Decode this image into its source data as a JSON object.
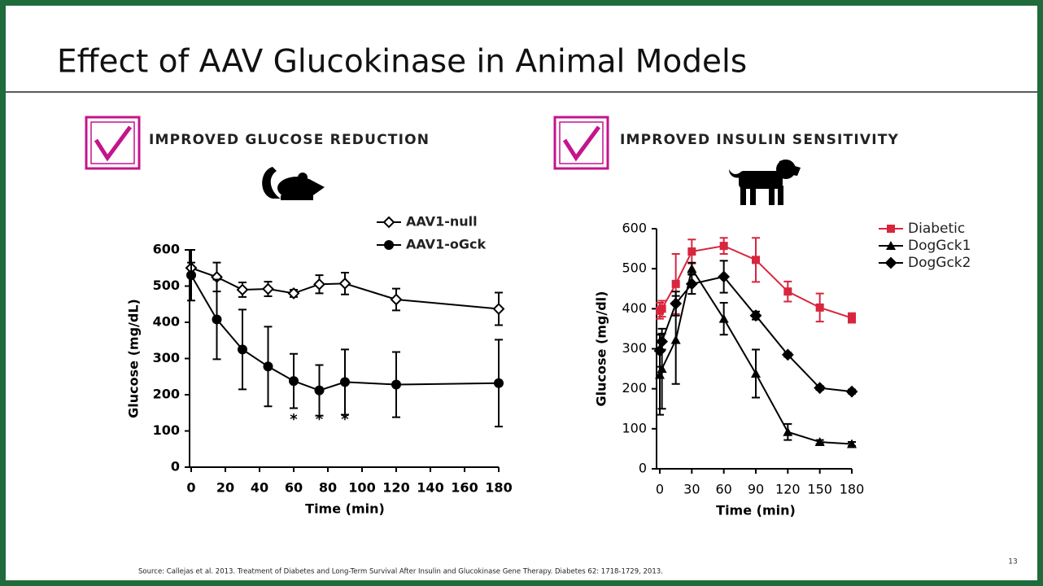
{
  "title": "Effect of AAV Glucokinase in Animal Models",
  "sections": [
    "IMPROVED GLUCOSE REDUCTION",
    "IMPROVED INSULIN SENSITIVITY"
  ],
  "source": "Source: Callejas et al. 2013. Treatment of Diabetes and Long-Term Survival After Insulin and Glucokinase Gene Therapy. Diabetes 62: 1718-1729, 2013.",
  "page_number": "13",
  "chart_data": [
    {
      "type": "line",
      "x_label": "Time (min)",
      "y_label": "Glucose (mg/dL)",
      "x": [
        0,
        15,
        30,
        45,
        60,
        75,
        90,
        120,
        180
      ],
      "series": [
        {
          "name": "AAV1-null",
          "color": "#000000",
          "marker": "diamond-open",
          "values": [
            550,
            525,
            490,
            492,
            480,
            505,
            507,
            463,
            437
          ],
          "errors": [
            15,
            40,
            20,
            20,
            10,
            25,
            30,
            30,
            45
          ]
        },
        {
          "name": "AAV1-oGck",
          "color": "#000000",
          "marker": "circle",
          "values": [
            530,
            408,
            325,
            278,
            238,
            212,
            235,
            228,
            232
          ],
          "errors": [
            70,
            110,
            110,
            110,
            75,
            70,
            90,
            90,
            120
          ]
        }
      ],
      "annotations": [
        {
          "x": 60,
          "text": "*"
        },
        {
          "x": 75,
          "text": "*"
        },
        {
          "x": 90,
          "text": "*"
        }
      ],
      "xlim": [
        0,
        180
      ],
      "xticks": [
        0,
        20,
        40,
        60,
        80,
        100,
        120,
        140,
        160,
        180
      ],
      "ylim": [
        0,
        600
      ],
      "yticks": [
        0,
        100,
        200,
        300,
        400,
        500,
        600
      ]
    },
    {
      "type": "line",
      "x_label": "Time (min)",
      "y_label": "Glucose (mg/dl)",
      "x": [
        0,
        2,
        15,
        30,
        60,
        90,
        120,
        150,
        180
      ],
      "series": [
        {
          "name": "Diabetic",
          "color": "#d7263d",
          "marker": "square",
          "values": [
            395,
            400,
            462,
            543,
            557,
            522,
            443,
            403,
            377
          ],
          "errors": [
            20,
            20,
            75,
            30,
            20,
            55,
            25,
            35,
            12
          ]
        },
        {
          "name": "DogGck1",
          "color": "#000000",
          "marker": "triangle",
          "values": [
            235,
            250,
            322,
            500,
            375,
            238,
            92,
            67,
            62
          ],
          "errors": [
            100,
            100,
            110,
            15,
            40,
            60,
            20,
            5,
            5
          ]
        },
        {
          "name": "DogGck2",
          "color": "#000000",
          "marker": "diamond",
          "values": [
            295,
            318,
            413,
            462,
            480,
            383,
            285,
            202,
            193
          ],
          "errors": [
            40,
            20,
            30,
            25,
            40,
            10,
            5,
            5,
            5
          ]
        }
      ],
      "xlim": [
        0,
        180
      ],
      "xticks": [
        0,
        30,
        60,
        90,
        120,
        150,
        180
      ],
      "ylim": [
        0,
        600
      ],
      "yticks": [
        0,
        100,
        200,
        300,
        400,
        500,
        600
      ]
    }
  ]
}
